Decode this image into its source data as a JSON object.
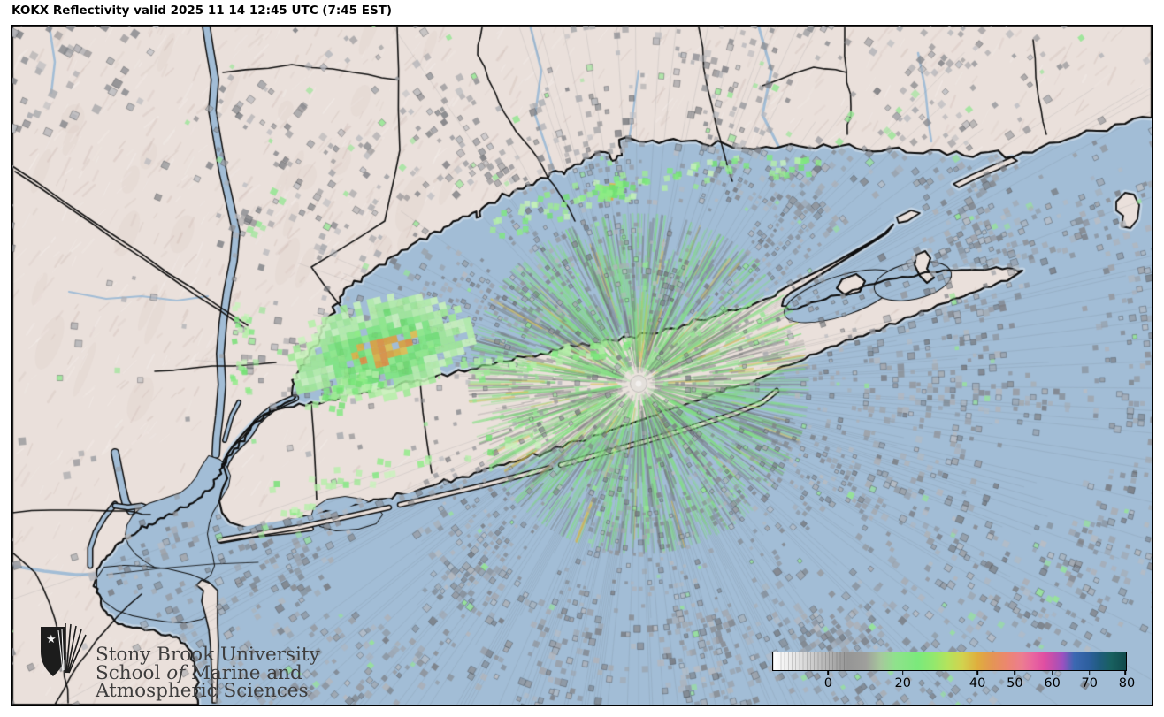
{
  "title": "KOKX Reflectivity valid 2025 11 14 12:45 UTC (7:45 EST)",
  "watermark": {
    "line1": "Stony Brook University",
    "line2_pre": "School ",
    "line2_italic": "of",
    "line2_post": " Marine and",
    "line3": "Atmospheric Sciences"
  },
  "colorbar": {
    "tick_labels": [
      "0",
      "20",
      "40",
      "50",
      "60",
      "70",
      "80"
    ],
    "tick_values": [
      0,
      20,
      40,
      50,
      60,
      70,
      80
    ],
    "min_dbz": -15,
    "max_dbz": 80,
    "stops": [
      [
        -15,
        "#ffffff"
      ],
      [
        -8,
        "#e2e2e2"
      ],
      [
        0,
        "#b2b2b2"
      ],
      [
        5,
        "#959595"
      ],
      [
        10,
        "#9f9f9c"
      ],
      [
        14,
        "#a6c89c"
      ],
      [
        18,
        "#8fe28c"
      ],
      [
        24,
        "#7be97b"
      ],
      [
        28,
        "#91e86e"
      ],
      [
        32,
        "#b4e35c"
      ],
      [
        36,
        "#d2d24e"
      ],
      [
        40,
        "#dfae3e"
      ],
      [
        44,
        "#e49554"
      ],
      [
        48,
        "#ec8670"
      ],
      [
        52,
        "#ec7d90"
      ],
      [
        55,
        "#e9659f"
      ],
      [
        58,
        "#e04ea2"
      ],
      [
        61,
        "#b94fb0"
      ],
      [
        63,
        "#9b51c0"
      ],
      [
        66,
        "#3c68b2"
      ],
      [
        70,
        "#2d5f9e"
      ],
      [
        73,
        "#1f5c7d"
      ],
      [
        76,
        "#18605f"
      ],
      [
        80,
        "#114a4c"
      ]
    ]
  },
  "colors": {
    "water": "#a2bdd6",
    "halo": "#c3d4e4",
    "land": "#eae0db",
    "land_shadow": "#cdbab3",
    "land_light": "#f7f1ee",
    "coastline": "#0e0e0e",
    "border": "#111111",
    "clutter_gray": "#8f979e",
    "echo_green": "#8ee58b",
    "echo_gold": "#dcb243",
    "radar_dot": "#e4e0db",
    "watermark_text": "#3e3d3d"
  }
}
